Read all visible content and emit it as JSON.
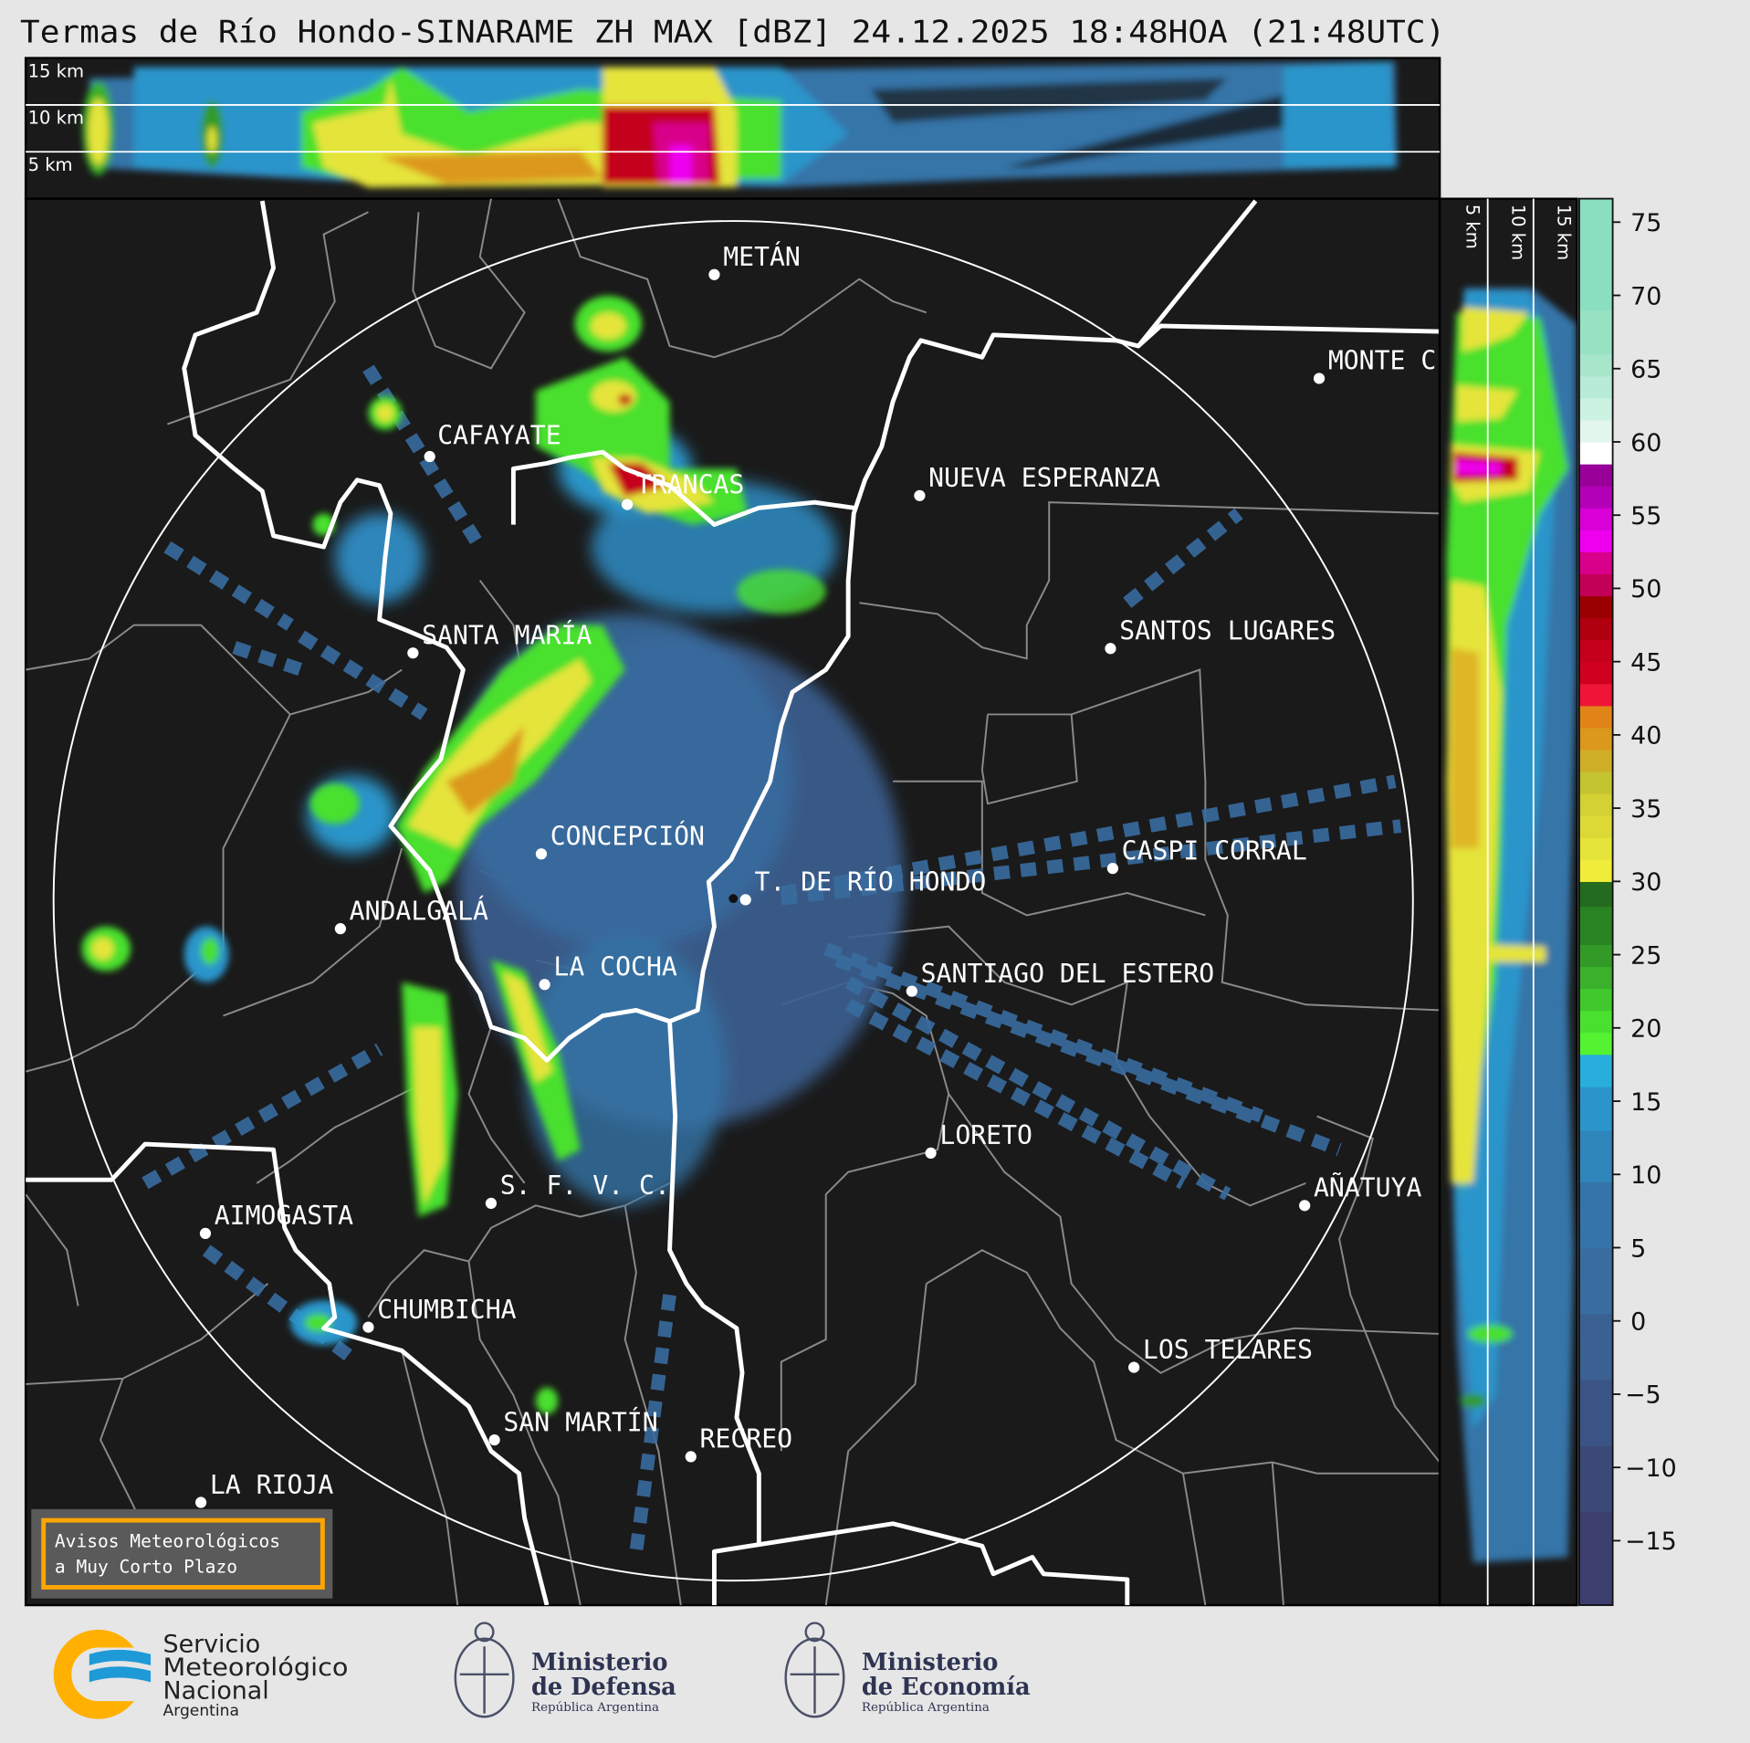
{
  "title": "Termas de Río Hondo-SINARAME ZH MAX [dBZ] 24.12.2025 18:48HOA (21:48UTC)",
  "top_section": {
    "height_labels": [
      "15 km",
      "10 km",
      "5 km"
    ]
  },
  "side_section": {
    "height_labels": [
      "5 km",
      "10 km",
      "15 km"
    ]
  },
  "cities": [
    {
      "name": "METÁN"
    },
    {
      "name": "CAFAYATE"
    },
    {
      "name": "TRANCAS"
    },
    {
      "name": "NUEVA ESPERANZA"
    },
    {
      "name": "MONTE C"
    },
    {
      "name": "SANTOS LUGARES"
    },
    {
      "name": "SANTA MARÍA"
    },
    {
      "name": "CONCEPCIÓN"
    },
    {
      "name": "CASPI CORRAL"
    },
    {
      "name": "T. DE RÍO HONDO"
    },
    {
      "name": "ANDALGALÁ"
    },
    {
      "name": "LA COCHA"
    },
    {
      "name": "SANTIAGO DEL ESTERO"
    },
    {
      "name": "LORETO"
    },
    {
      "name": "S. F. V. C."
    },
    {
      "name": "AÑATUYA"
    },
    {
      "name": "AIMOGASTA"
    },
    {
      "name": "CHUMBICHA"
    },
    {
      "name": "LOS TELARES"
    },
    {
      "name": "SAN MARTÍN"
    },
    {
      "name": "RECREO"
    },
    {
      "name": "LA RIOJA"
    }
  ],
  "colorbar": {
    "unit": "dBZ",
    "range": [
      -19.4,
      76.6
    ],
    "ticks": [
      75,
      70,
      65,
      60,
      55,
      50,
      45,
      40,
      35,
      30,
      25,
      20,
      15,
      10,
      5,
      0,
      -5,
      -10,
      -15
    ],
    "bands": [
      {
        "from": -19.4,
        "to": -13,
        "color": "#3c3f6e"
      },
      {
        "from": -13,
        "to": -8.5,
        "color": "#3c4a78"
      },
      {
        "from": -8.5,
        "to": -4,
        "color": "#3a5585"
      },
      {
        "from": -4,
        "to": 0.5,
        "color": "#3a6192"
      },
      {
        "from": 0.5,
        "to": 5,
        "color": "#396c9f"
      },
      {
        "from": 5,
        "to": 9.5,
        "color": "#3574a8"
      },
      {
        "from": 9.5,
        "to": 13,
        "color": "#2f86bb"
      },
      {
        "from": 13,
        "to": 16,
        "color": "#2b95cb"
      },
      {
        "from": 16,
        "to": 18.2,
        "color": "#28aedc"
      },
      {
        "from": 18.2,
        "to": 19.7,
        "color": "#55f232"
      },
      {
        "from": 19.7,
        "to": 21.2,
        "color": "#4ae02f"
      },
      {
        "from": 21.2,
        "to": 22.7,
        "color": "#40c82c"
      },
      {
        "from": 22.7,
        "to": 24.2,
        "color": "#3bb02a"
      },
      {
        "from": 24.2,
        "to": 25.7,
        "color": "#339a27"
      },
      {
        "from": 25.7,
        "to": 28.3,
        "color": "#2a8322"
      },
      {
        "from": 28.3,
        "to": 30,
        "color": "#236b1e"
      },
      {
        "from": 30,
        "to": 31.5,
        "color": "#f0ec3a"
      },
      {
        "from": 31.5,
        "to": 33,
        "color": "#e5e43a"
      },
      {
        "from": 33,
        "to": 34.5,
        "color": "#dcd936"
      },
      {
        "from": 34.5,
        "to": 36,
        "color": "#d3d134"
      },
      {
        "from": 36,
        "to": 37.5,
        "color": "#c4c431"
      },
      {
        "from": 37.5,
        "to": 39,
        "color": "#cfae28"
      },
      {
        "from": 39,
        "to": 40.5,
        "color": "#db981c"
      },
      {
        "from": 40.5,
        "to": 42,
        "color": "#e08418"
      },
      {
        "from": 42,
        "to": 43.5,
        "color": "#ee1538"
      },
      {
        "from": 43.5,
        "to": 45,
        "color": "#d0001f"
      },
      {
        "from": 45,
        "to": 46.5,
        "color": "#c4001a"
      },
      {
        "from": 46.5,
        "to": 48,
        "color": "#b00010"
      },
      {
        "from": 48,
        "to": 49.5,
        "color": "#9a0000"
      },
      {
        "from": 49.5,
        "to": 51,
        "color": "#c20058"
      },
      {
        "from": 51,
        "to": 52.5,
        "color": "#d8008a"
      },
      {
        "from": 52.5,
        "to": 54,
        "color": "#ee00ee"
      },
      {
        "from": 54,
        "to": 55.5,
        "color": "#d800d6"
      },
      {
        "from": 55.5,
        "to": 57,
        "color": "#b400b8"
      },
      {
        "from": 57,
        "to": 58.5,
        "color": "#990099"
      },
      {
        "from": 58.5,
        "to": 60,
        "color": "#ffffff"
      },
      {
        "from": 60,
        "to": 61.5,
        "color": "#e2f6ee"
      },
      {
        "from": 61.5,
        "to": 63,
        "color": "#ccf2e2"
      },
      {
        "from": 63,
        "to": 64.5,
        "color": "#b8ecd6"
      },
      {
        "from": 64.5,
        "to": 66,
        "color": "#a8e6cc"
      },
      {
        "from": 66,
        "to": 69,
        "color": "#98e2c4"
      },
      {
        "from": 69,
        "to": 76.6,
        "color": "#8adfbe"
      }
    ]
  },
  "colors": {
    "background": "#1a1a1a",
    "page": "#e6e6e6",
    "border_white": "#ffffff",
    "border_gray": "#8a8a8a",
    "alert_accent": "#ffa500"
  },
  "alert_box": {
    "line1": "Avisos Meteorológicos",
    "line2": "a Muy Corto Plazo"
  },
  "logos": {
    "smn": {
      "line1": "Servicio",
      "line2": "Meteorológico",
      "line3": "Nacional",
      "line4": "Argentina"
    },
    "defensa": {
      "line1": "Ministerio",
      "line2": "de Defensa",
      "line3": "República Argentina"
    },
    "economia": {
      "line1": "Ministerio",
      "line2": "de Economía",
      "line3": "República Argentina"
    }
  }
}
